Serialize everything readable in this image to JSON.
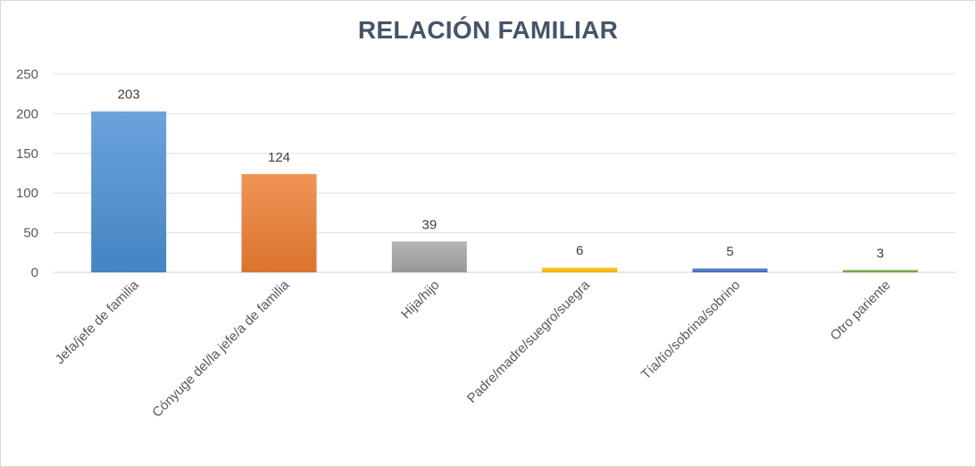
{
  "chart_data": {
    "type": "bar",
    "title": "RELACIÓN FAMILIAR",
    "categories": [
      "Jefa/jefe de familia",
      "Cónyuge del/la jefe/a de familia",
      "Hija/hijo",
      "Padre/madre/suegro/suegra",
      "Tía/tío/sobrina/sobrino",
      "Otro pariente"
    ],
    "values": [
      203,
      124,
      39,
      6,
      5,
      3
    ],
    "colors": [
      "#4a8fd4",
      "#ed7d31",
      "#a5a5a5",
      "#ffc000",
      "#4472c4",
      "#70ad47"
    ],
    "ylim": [
      0,
      250
    ],
    "yticks": [
      0,
      50,
      100,
      150,
      200,
      250
    ],
    "grid": true,
    "xlabel": "",
    "ylabel": ""
  }
}
